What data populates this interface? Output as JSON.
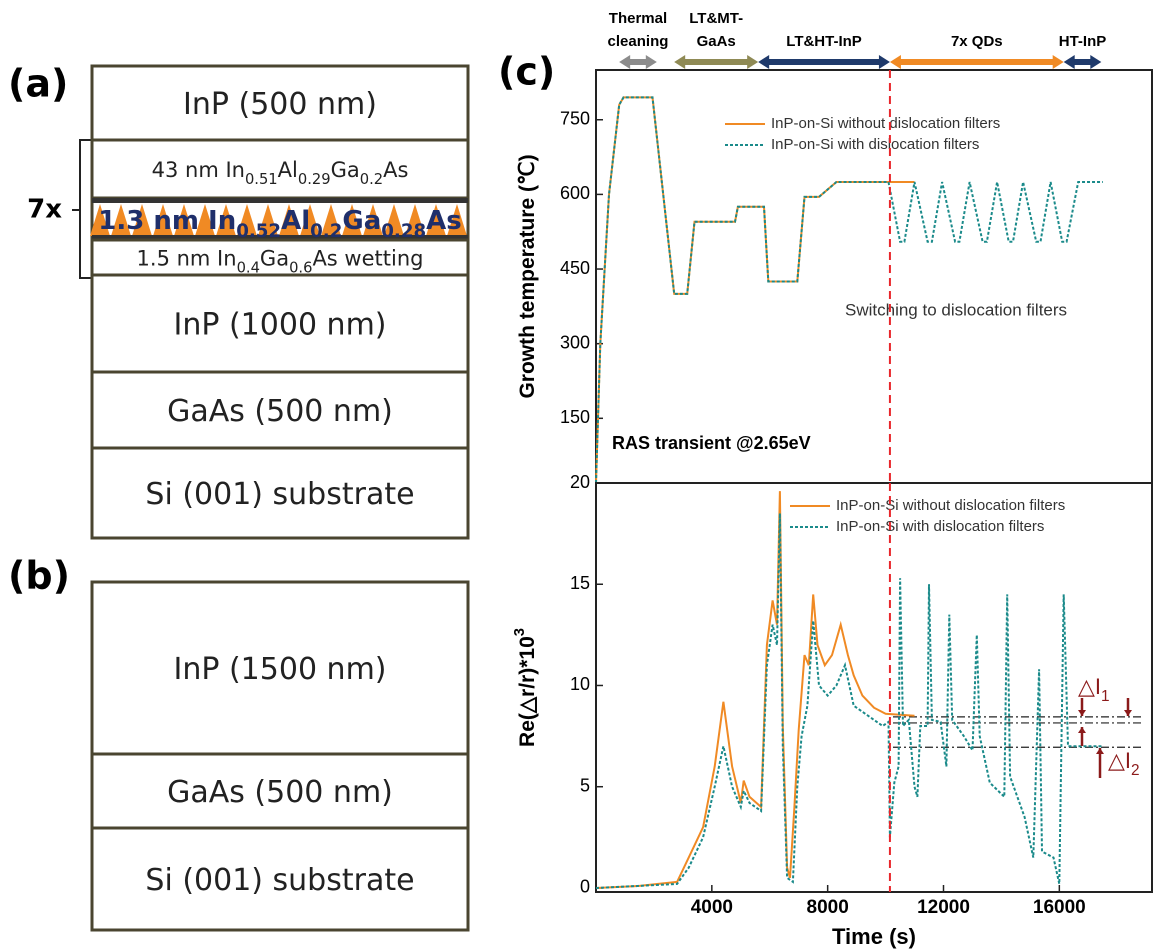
{
  "panel_labels": [
    "(a)",
    "(b)",
    "(c)"
  ],
  "diagram_a": {
    "repeat": "7x",
    "layers": [
      [
        "InP (500 nm)"
      ],
      [
        "43 nm In",
        "0.51",
        "Al",
        "0.29",
        "Ga",
        "0.2",
        "As"
      ],
      [
        "1.3 nm In",
        "0.52",
        "Al",
        "0.2",
        "Ga",
        "0.28",
        "As"
      ],
      [
        "1.5 nm In",
        "0.4",
        "Ga",
        "0.6",
        "As wetting"
      ],
      [
        "InP (1000 nm)"
      ],
      [
        "GaAs (500 nm)"
      ],
      [
        "Si (001) substrate"
      ]
    ]
  },
  "diagram_b": {
    "layers": [
      [
        "InP (1500 nm)"
      ],
      [
        "GaAs (500 nm)"
      ],
      [
        "Si (001) substrate"
      ]
    ]
  },
  "chart_data": [
    {
      "type": "line",
      "ylabel": [
        "Growth temperature (℃)"
      ],
      "xlim": [
        0,
        19200
      ],
      "ylim": [
        20,
        850
      ],
      "yticks": [
        20,
        150,
        300,
        450,
        600,
        750
      ],
      "phases": [
        {
          "label": [
            "Thermal",
            "cleaning"
          ],
          "start": 800,
          "end": 2100,
          "color": "#8c8c8c"
        },
        {
          "label": [
            "LT&MT-",
            "GaAs"
          ],
          "start": 2700,
          "end": 5600,
          "color": "#8f8a55"
        },
        {
          "label": [
            "LT&HT-InP"
          ],
          "start": 5600,
          "end": 10150,
          "color": "#1f3a6b"
        },
        {
          "label": [
            "7x QDs"
          ],
          "start": 10150,
          "end": 16150,
          "color": "#f08a24"
        },
        {
          "label": [
            "HT-InP"
          ],
          "start": 16150,
          "end": 17450,
          "color": "#1f3a6b"
        }
      ],
      "vline": 10150,
      "vline_color": "#e8262b",
      "annotations": [
        "Switching to dislocation filters",
        "RAS transient @2.65eV"
      ],
      "series": [
        {
          "name": "InP-on-Si without dislocation filters",
          "color": "#f08a24",
          "line_style": "solid",
          "x": [
            0,
            150,
            450,
            800,
            950,
            1950,
            2700,
            3150,
            3400,
            4800,
            4900,
            5800,
            5950,
            6950,
            7200,
            7700,
            8300,
            11000
          ],
          "values": [
            20,
            300,
            600,
            780,
            795,
            795,
            400,
            400,
            545,
            545,
            575,
            575,
            425,
            425,
            595,
            595,
            625,
            625
          ]
        },
        {
          "name": "InP-on-Si with dislocation filters",
          "color": "#1a8a8a",
          "line_style": "dotted",
          "x": [
            0,
            150,
            450,
            800,
            950,
            1950,
            2700,
            3150,
            3400,
            4800,
            4900,
            5800,
            5950,
            6950,
            7200,
            7700,
            8300,
            10100,
            10500,
            10650,
            11000,
            11450,
            11600,
            11950,
            12400,
            12550,
            12900,
            13350,
            13500,
            13850,
            14250,
            14400,
            14750,
            15200,
            15350,
            15700,
            16100,
            16250,
            16650,
            17500
          ],
          "values": [
            20,
            300,
            600,
            780,
            795,
            795,
            400,
            400,
            545,
            545,
            575,
            575,
            425,
            425,
            595,
            595,
            625,
            625,
            505,
            505,
            625,
            505,
            505,
            625,
            505,
            505,
            625,
            505,
            505,
            625,
            505,
            505,
            625,
            505,
            505,
            625,
            505,
            505,
            625,
            625
          ]
        }
      ]
    },
    {
      "type": "line",
      "ylabel": [
        "Re(△r/r)*10",
        "3"
      ],
      "xlabel": "Time (s)",
      "xlim": [
        0,
        19200
      ],
      "ylim": [
        -0.2,
        20
      ],
      "xticks": [
        4000,
        8000,
        12000,
        16000
      ],
      "yticks": [
        0,
        5,
        10,
        15
      ],
      "vline": 10150,
      "vline_color": "#e8262b",
      "reference_lines": [
        8.45,
        8.15,
        6.95
      ],
      "annotations": [
        [
          "△I",
          "1"
        ],
        [
          "△I",
          "2"
        ]
      ],
      "series": [
        {
          "name": "InP-on-Si without dislocation filters",
          "color": "#f08a24",
          "line_style": "solid",
          "x": [
            0,
            1500,
            2800,
            3200,
            3700,
            4100,
            4400,
            4700,
            5000,
            5100,
            5300,
            5700,
            5900,
            6100,
            6250,
            6350,
            6450,
            6600,
            6700,
            6850,
            7000,
            7200,
            7350,
            7500,
            7650,
            7900,
            8150,
            8450,
            8700,
            8900,
            9200,
            9600,
            10000,
            11000
          ],
          "values": [
            0,
            0.1,
            0.3,
            1.5,
            3,
            6,
            9.2,
            6,
            4.2,
            5.3,
            4.5,
            4,
            12,
            14.2,
            13,
            19.6,
            8,
            1,
            0.5,
            4,
            7.8,
            11.5,
            11,
            14.5,
            12,
            11,
            11.5,
            13,
            11.5,
            10.5,
            9.5,
            8.9,
            8.6,
            8.5
          ]
        },
        {
          "name": "InP-on-Si with dislocation filters",
          "color": "#1a8a8a",
          "line_style": "dotted",
          "x": [
            0,
            1500,
            2800,
            3200,
            3700,
            4100,
            4400,
            4700,
            5000,
            5100,
            5300,
            5700,
            5900,
            6100,
            6250,
            6350,
            6450,
            6600,
            6800,
            6950,
            7100,
            7300,
            7500,
            7700,
            8000,
            8300,
            8600,
            8900,
            9400,
            9900,
            10100,
            10150,
            10300,
            10450,
            10500,
            10600,
            10800,
            11000,
            11100,
            11200,
            11450,
            11500,
            11600,
            11900,
            12100,
            12200,
            12300,
            12700,
            13000,
            13150,
            13250,
            13600,
            14100,
            14200,
            14300,
            14800,
            15100,
            15300,
            15400,
            15800,
            16000,
            16150,
            16300,
            17500
          ],
          "values": [
            0,
            0.1,
            0.2,
            1,
            2.5,
            5,
            7,
            5,
            4,
            4.8,
            4.2,
            3.8,
            11,
            13,
            12,
            18.5,
            7,
            0.5,
            0.3,
            5,
            7.5,
            9,
            13.2,
            10,
            9.5,
            10,
            11,
            9,
            8.5,
            8,
            8.2,
            2.5,
            5.2,
            6,
            15.3,
            8,
            8.3,
            5,
            4.5,
            8,
            8,
            15,
            8.3,
            8.2,
            6,
            13.5,
            8.3,
            7.5,
            6.8,
            12.5,
            7.5,
            5.2,
            4.5,
            14.5,
            5.5,
            3.5,
            1.5,
            10.8,
            1.8,
            1.5,
            0.2,
            14.5,
            7,
            7
          ]
        }
      ]
    }
  ]
}
